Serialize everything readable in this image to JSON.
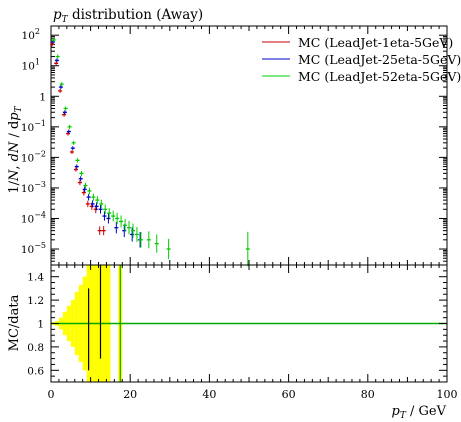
{
  "title": "p_T distribution (Away)",
  "legend": [
    {
      "label": "MC (LeadJet-1eta-5GeV)",
      "color": "#cc0000"
    },
    {
      "label": "MC (LeadJet-25eta-5GeV)",
      "color": "#0000cc"
    },
    {
      "label": "MC (LeadJet-52eta-5GeV)",
      "color": "#00cc00"
    }
  ],
  "chart_data": [
    {
      "type": "scatter",
      "title": "p_T distribution (Away)",
      "ylabel": "1/N dN/dp_T",
      "xlabel": "p_T / GeV",
      "xlim": [
        0,
        100
      ],
      "ylim": [
        3e-06,
        200
      ],
      "yscale": "log",
      "ytick_labels": [
        "10^-5",
        "10^-4",
        "10^-3",
        "10^-2",
        "10^-1",
        "1",
        "10^1",
        "10^2"
      ],
      "xtick_labels": [
        "0",
        "20",
        "40",
        "60",
        "80",
        "100"
      ],
      "legend_position": "top-right",
      "series": [
        {
          "name": "MC (LeadJet-1eta-5GeV)",
          "color": "#cc0000",
          "x": [
            0.5,
            1.5,
            2.5,
            3.5,
            4.5,
            5.5,
            6.5,
            7.5,
            8.5,
            9.5,
            10.5,
            11.5,
            12.5,
            13.5
          ],
          "y": [
            50,
            12,
            1.5,
            0.25,
            0.06,
            0.015,
            0.004,
            0.0015,
            0.0007,
            0.0003,
            0.00025,
            0.0002,
            4e-05,
            4e-05
          ]
        },
        {
          "name": "MC (LeadJet-25eta-5GeV)",
          "color": "#0000cc",
          "x": [
            0.5,
            1.5,
            2.5,
            3.5,
            4.5,
            5.5,
            6.5,
            7.5,
            8.5,
            9.5,
            10.5,
            11.5,
            12.5,
            13.5,
            14.5,
            16.5,
            18.5,
            20.5,
            22.5
          ],
          "y": [
            60,
            15,
            2,
            0.3,
            0.07,
            0.02,
            0.005,
            0.002,
            0.0009,
            0.0005,
            0.0003,
            0.00025,
            0.0002,
            0.00012,
            0.0001,
            5e-05,
            4e-05,
            3e-05,
            2e-05
          ]
        },
        {
          "name": "MC (LeadJet-52eta-5GeV)",
          "color": "#00cc00",
          "x": [
            0.5,
            1.5,
            2.5,
            3.5,
            4.5,
            5.5,
            6.5,
            7.5,
            8.5,
            9.5,
            10.5,
            11.5,
            12.5,
            13.5,
            14.5,
            15.5,
            16.5,
            17.5,
            18.5,
            19.5,
            20.5,
            21.5,
            22.5,
            24.5,
            26.5,
            29.5,
            49.5
          ],
          "y": [
            70,
            20,
            2.5,
            0.4,
            0.1,
            0.03,
            0.008,
            0.003,
            0.0012,
            0.0008,
            0.0005,
            0.0004,
            0.0003,
            0.0002,
            0.00015,
            0.00012,
            0.0001,
            8e-05,
            6e-05,
            5e-05,
            4e-05,
            3e-05,
            2e-05,
            2e-05,
            1.5e-05,
            1e-05,
            1e-05
          ]
        }
      ]
    },
    {
      "type": "line",
      "ylabel": "MC/data",
      "xlabel": "p_T / GeV",
      "xlim": [
        0,
        100
      ],
      "ylim": [
        0.5,
        1.5
      ],
      "ytick_labels": [
        "0.6",
        "0.8",
        "1",
        "1.2",
        "1.4"
      ],
      "reference_value": 1,
      "reference_color": "#00aa00",
      "uncertainty_color": "#ffff00",
      "uncertainty_band": [
        {
          "x0": 0,
          "x1": 1,
          "lo": 0.99,
          "hi": 1.01
        },
        {
          "x0": 1,
          "x1": 2,
          "lo": 0.98,
          "hi": 1.02
        },
        {
          "x0": 2,
          "x1": 3,
          "lo": 0.95,
          "hi": 1.05
        },
        {
          "x0": 3,
          "x1": 4,
          "lo": 0.9,
          "hi": 1.1
        },
        {
          "x0": 4,
          "x1": 5,
          "lo": 0.85,
          "hi": 1.15
        },
        {
          "x0": 5,
          "x1": 6,
          "lo": 0.8,
          "hi": 1.2
        },
        {
          "x0": 6,
          "x1": 7,
          "lo": 0.73,
          "hi": 1.27
        },
        {
          "x0": 7,
          "x1": 8,
          "lo": 0.67,
          "hi": 1.33
        },
        {
          "x0": 8,
          "x1": 9,
          "lo": 0.6,
          "hi": 1.4
        },
        {
          "x0": 9,
          "x1": 11,
          "lo": 0.5,
          "hi": 1.5
        },
        {
          "x0": 11,
          "x1": 12,
          "lo": 0.5,
          "hi": 1.5
        },
        {
          "x0": 12,
          "x1": 13,
          "lo": 0.5,
          "hi": 1.5
        },
        {
          "x0": 13,
          "x1": 15,
          "lo": 0.5,
          "hi": 1.5
        },
        {
          "x0": 17,
          "x1": 18,
          "lo": 0.5,
          "hi": 1.5
        }
      ],
      "ratio_points": [
        {
          "x": 9.5,
          "lo": 0.6,
          "hi": 1.3,
          "color": "#000000"
        },
        {
          "x": 12.5,
          "lo": 0.7,
          "hi": 1.5,
          "color": "#000000"
        },
        {
          "x": 17.5,
          "lo": 0.5,
          "hi": 1.5,
          "color": "#00aa00"
        }
      ]
    }
  ]
}
